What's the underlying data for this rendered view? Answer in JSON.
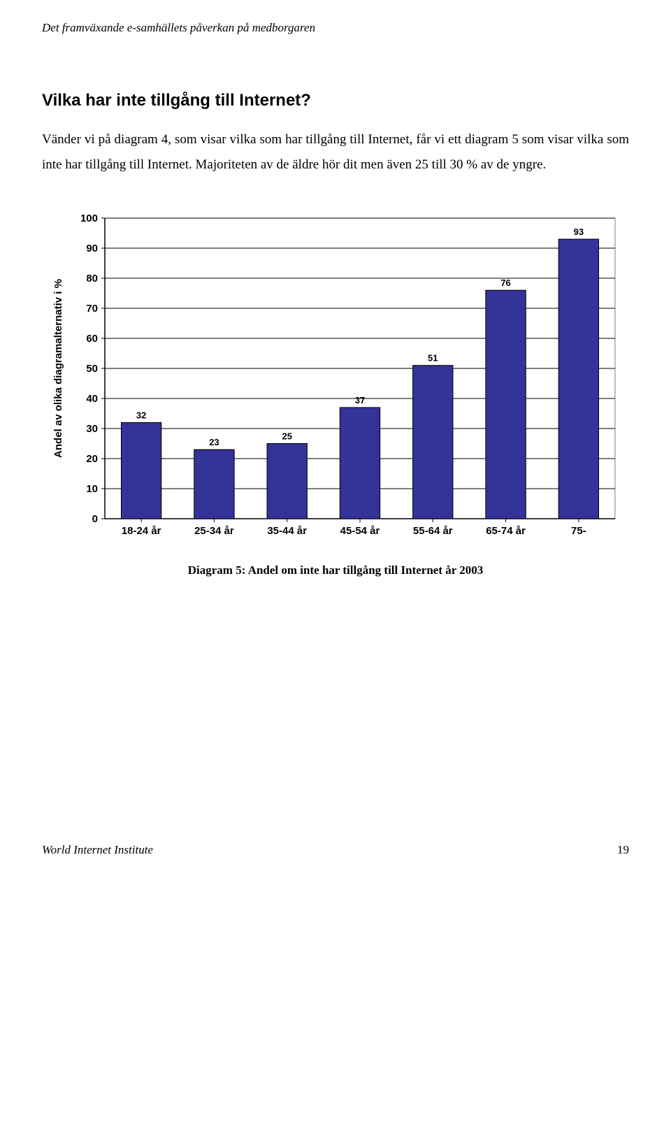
{
  "header": {
    "running_title": "Det framväxande e-samhällets påverkan på medborgaren"
  },
  "title": "Vilka har inte tillgång till Internet?",
  "body_text": "Vänder vi på diagram 4, som visar vilka som har tillgång till Internet, får vi ett diagram 5 som visar vilka som inte har tillgång till Internet. Majoriteten av de äldre hör dit men även 25 till 30 % av de yngre.",
  "chart": {
    "type": "bar",
    "ylabel": "Andel av olika diagramalternativ i %",
    "categories": [
      "18-24 år",
      "25-34 år",
      "35-44 år",
      "45-54 år",
      "55-64 år",
      "65-74 år",
      "75-"
    ],
    "values": [
      32,
      23,
      25,
      37,
      51,
      76,
      93
    ],
    "ylim": [
      0,
      100
    ],
    "ytick_step": 10,
    "bar_color": "#333399",
    "bar_border_color": "#000000",
    "background_color": "#ffffff",
    "grid_color": "#000000",
    "plot_border_color": "#808080",
    "axis_font_family": "Arial, Helvetica, sans-serif",
    "axis_font_size": 15,
    "label_font_size": 13,
    "ylabel_font_size": 15,
    "bar_width_ratio": 0.55
  },
  "caption": "Diagram 5: Andel om inte har tillgång till Internet år 2003",
  "footer": {
    "org": "World Internet Institute",
    "page": "19"
  }
}
